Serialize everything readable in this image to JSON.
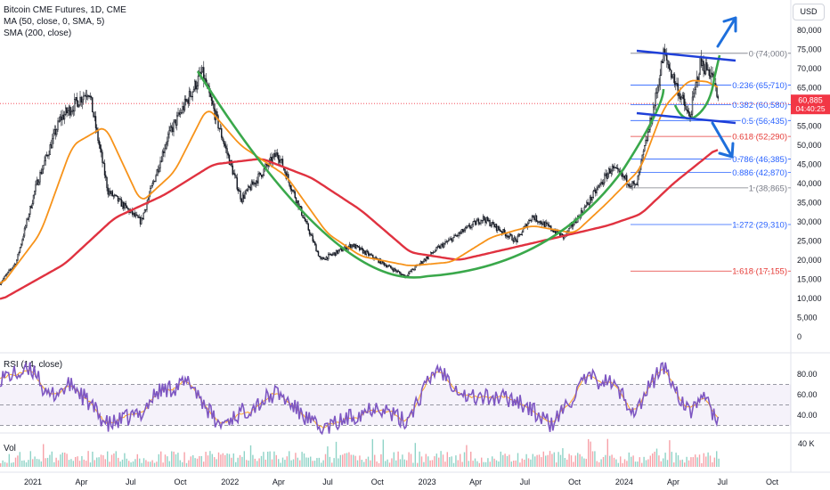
{
  "legend": {
    "symbol": "Bitcoin CME Futures, 1D, CME",
    "ma": "MA (50, close, 0, SMA, 5)",
    "sma": "SMA (200, close)"
  },
  "currency": "USD",
  "rsi_label": "RSI (14, close)",
  "volume_label": "Vol",
  "volume_max_label": "40 K",
  "price_badge": {
    "price": "60,885",
    "countdown": "04:40:25"
  },
  "colors": {
    "up": "#131722",
    "ma50": "#f7931a",
    "sma200": "#e03240",
    "cup": "#3aa84b",
    "channel": "#1e3fd8",
    "arrow": "#1e6fdc",
    "fib": "#2962ff",
    "fib_618": "#e53935",
    "fib_1618": "#e53935",
    "rsi": "#7e57c2",
    "rsi_ma": "#ffa726",
    "badge": "#f23645"
  },
  "chart_data": {
    "type": "line",
    "title": "Bitcoin CME Futures, 1D, CME",
    "y_axis": {
      "ticks": [
        "80,000",
        "75,000",
        "70,000",
        "65,000",
        "60,000",
        "55,000",
        "50,000",
        "45,000",
        "40,000",
        "35,000",
        "30,000",
        "25,000",
        "20,000",
        "15,000",
        "10,000",
        "5,000",
        "0"
      ],
      "range": [
        0,
        80000
      ],
      "currency": "USD"
    },
    "x_axis": {
      "ticks": [
        "2021",
        "Apr",
        "Jul",
        "Oct",
        "2022",
        "Apr",
        "Jul",
        "Oct",
        "2023",
        "Apr",
        "Jul",
        "Oct",
        "2024",
        "Apr",
        "Jul",
        "Oct"
      ],
      "range": [
        "2020-11",
        "2024-12"
      ]
    },
    "price_series": {
      "name": "Bitcoin CME Futures",
      "x": [
        "2020-11-01",
        "2020-12-01",
        "2021-01-08",
        "2021-02-21",
        "2021-03-15",
        "2021-04-14",
        "2021-05-20",
        "2021-07-20",
        "2021-09-07",
        "2021-11-10",
        "2022-01-22",
        "2022-03-30",
        "2022-06-18",
        "2022-08-15",
        "2022-11-21",
        "2023-01-20",
        "2023-04-14",
        "2023-06-15",
        "2023-07-14",
        "2023-09-11",
        "2023-10-24",
        "2023-12-08",
        "2024-01-23",
        "2024-02-28",
        "2024-03-14",
        "2024-05-01",
        "2024-05-21",
        "2024-06-10",
        "2024-06-24"
      ],
      "values": [
        14000,
        19500,
        40000,
        57000,
        60000,
        64500,
        38000,
        30000,
        52000,
        69000,
        36000,
        48000,
        20000,
        24000,
        15800,
        23000,
        31000,
        25000,
        31500,
        26000,
        34500,
        44000,
        39000,
        62000,
        74000,
        57000,
        71500,
        69000,
        60885
      ]
    },
    "series": [
      {
        "name": "MA (50, close, 0, SMA, 5)",
        "x": [
          "2020-11-01",
          "2021-01-15",
          "2021-03-15",
          "2021-05-15",
          "2021-07-20",
          "2021-09-20",
          "2021-11-20",
          "2022-01-20",
          "2022-04-15",
          "2022-06-30",
          "2022-09-01",
          "2022-11-30",
          "2023-02-15",
          "2023-04-30",
          "2023-07-15",
          "2023-10-01",
          "2023-12-01",
          "2024-02-01",
          "2024-03-15",
          "2024-04-30",
          "2024-06-10",
          "2024-06-24"
        ],
        "values": [
          13000,
          27000,
          50000,
          55000,
          35000,
          43000,
          60000,
          50000,
          42000,
          27000,
          21000,
          18500,
          19500,
          26000,
          29000,
          27000,
          35000,
          44000,
          60000,
          67000,
          66500,
          64000
        ]
      },
      {
        "name": "SMA (200, close)",
        "x": [
          "2020-11-01",
          "2021-03-01",
          "2021-06-01",
          "2021-09-01",
          "2021-12-01",
          "2022-03-01",
          "2022-06-01",
          "2022-09-01",
          "2022-12-01",
          "2023-03-01",
          "2023-06-01",
          "2023-09-01",
          "2023-12-01",
          "2024-02-01",
          "2024-04-01",
          "2024-06-24"
        ],
        "values": [
          9500,
          19000,
          31000,
          37000,
          45000,
          46500,
          41500,
          33000,
          22000,
          20000,
          23000,
          26000,
          29000,
          32000,
          40000,
          49500
        ]
      },
      {
        "name": "RSI (14, close)",
        "panel": "rsi",
        "x": [
          "2020-11-01",
          "2021-01-08",
          "2021-01-25",
          "2021-03-15",
          "2021-05-20",
          "2021-07-20",
          "2021-08-20",
          "2021-10-20",
          "2021-12-10",
          "2022-03-30",
          "2022-06-18",
          "2022-10-01",
          "2022-11-21",
          "2023-01-20",
          "2023-03-15",
          "2023-06-15",
          "2023-08-20",
          "2023-10-24",
          "2023-12-08",
          "2024-01-23",
          "2024-02-28",
          "2024-03-14",
          "2024-05-01",
          "2024-05-21",
          "2024-06-24"
        ],
        "values": [
          77,
          84,
          57,
          70,
          30,
          42,
          63,
          72,
          30,
          62,
          25,
          50,
          33,
          87,
          58,
          56,
          30,
          76,
          72,
          43,
          78,
          88,
          40,
          60,
          35
        ]
      }
    ],
    "rsi_axis": {
      "ticks": [
        "80.00",
        "60.00",
        "40.00"
      ],
      "range": [
        20,
        100
      ]
    },
    "fibonacci": [
      {
        "level": "0",
        "price": "74,000"
      },
      {
        "level": "0.236",
        "price": "65,710"
      },
      {
        "level": "0.382",
        "price": "60,580"
      },
      {
        "level": "0.5",
        "price": "56,435"
      },
      {
        "level": "0.618",
        "price": "52,290"
      },
      {
        "level": "0.786",
        "price": "46,385"
      },
      {
        "level": "0.886",
        "price": "42,870"
      },
      {
        "level": "1",
        "price": "38,865"
      },
      {
        "level": "1.272",
        "price": "29,310"
      },
      {
        "level": "1.618",
        "price": "17,155"
      }
    ],
    "legend_position": "top-left",
    "grid": false
  }
}
